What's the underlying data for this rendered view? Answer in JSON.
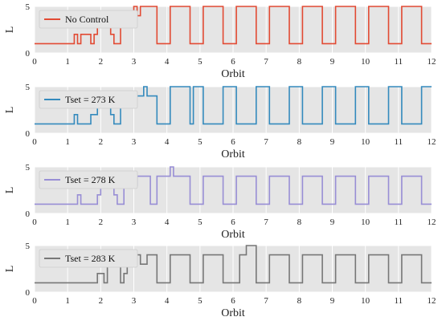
{
  "chart_data": [
    {
      "type": "line",
      "series": [
        {
          "name": "No Control",
          "color": "#e24a33",
          "x": [
            0,
            1.2,
            1.2,
            1.3,
            1.3,
            1.4,
            1.4,
            1.7,
            1.7,
            1.8,
            1.8,
            1.9,
            1.9,
            2.3,
            2.3,
            2.4,
            2.4,
            2.6,
            2.6,
            3.0,
            3.0,
            3.1,
            3.1,
            3.2,
            3.2,
            3.3,
            3.3,
            3.7,
            3.7,
            4.1,
            4.1,
            4.7,
            4.7,
            5.1,
            5.1,
            5.7,
            5.7,
            6.1,
            6.1,
            6.7,
            6.7,
            7.1,
            7.1,
            7.7,
            7.7,
            8.1,
            8.1,
            8.7,
            8.7,
            9.1,
            9.1,
            9.7,
            9.7,
            10.1,
            10.1,
            10.7,
            10.7,
            11.1,
            11.1,
            11.7,
            11.7,
            12
          ],
          "y": [
            1,
            1,
            2,
            2,
            1,
            1,
            2,
            2,
            1,
            1,
            2,
            2,
            3,
            3,
            2,
            2,
            1,
            1,
            4,
            4,
            5,
            5,
            4,
            4,
            5,
            5,
            5,
            5,
            1,
            1,
            5,
            5,
            1,
            1,
            5,
            5,
            1,
            1,
            5,
            5,
            1,
            1,
            5,
            5,
            1,
            1,
            5,
            5,
            1,
            1,
            5,
            5,
            1,
            1,
            5,
            5,
            1,
            1,
            5,
            5,
            1,
            1
          ]
        }
      ],
      "xlabel": "Orbit",
      "ylabel": "L",
      "xlim": [
        0,
        12
      ],
      "ylim": [
        0,
        5
      ],
      "xticks": [
        "0",
        "1",
        "2",
        "3",
        "4",
        "5",
        "6",
        "7",
        "8",
        "9",
        "10",
        "11",
        "12"
      ],
      "yticks": [
        "0",
        "5"
      ],
      "grid": true,
      "legend": "top-left"
    },
    {
      "type": "line",
      "series": [
        {
          "name": "Tset = 273 K",
          "color": "#348abd",
          "x": [
            0,
            1.2,
            1.2,
            1.3,
            1.3,
            1.7,
            1.7,
            1.9,
            1.9,
            2.3,
            2.3,
            2.4,
            2.4,
            2.6,
            2.6,
            2.9,
            2.9,
            3.0,
            3.0,
            3.3,
            3.3,
            3.4,
            3.4,
            3.7,
            3.7,
            4.1,
            4.1,
            4.7,
            4.7,
            4.8,
            4.8,
            5.1,
            5.1,
            5.7,
            5.7,
            6.1,
            6.1,
            6.7,
            6.7,
            7.1,
            7.1,
            7.7,
            7.7,
            8.1,
            8.1,
            8.7,
            8.7,
            9.1,
            9.1,
            9.7,
            9.7,
            10.1,
            10.1,
            10.7,
            10.7,
            11.1,
            11.1,
            11.7,
            11.7,
            12
          ],
          "y": [
            1,
            1,
            2,
            2,
            1,
            1,
            2,
            2,
            3,
            3,
            2,
            2,
            1,
            1,
            3,
            3,
            4,
            4,
            4,
            4,
            5,
            5,
            4,
            4,
            1,
            1,
            5,
            5,
            1,
            1,
            5,
            5,
            1,
            1,
            5,
            5,
            1,
            1,
            5,
            5,
            1,
            1,
            5,
            5,
            1,
            1,
            5,
            5,
            1,
            1,
            5,
            5,
            1,
            1,
            5,
            5,
            1,
            1,
            5,
            5
          ]
        }
      ],
      "xlabel": "Orbit",
      "ylabel": "L",
      "xlim": [
        0,
        12
      ],
      "ylim": [
        0,
        5
      ],
      "xticks": [
        "0",
        "1",
        "2",
        "3",
        "4",
        "5",
        "6",
        "7",
        "8",
        "9",
        "10",
        "11",
        "12"
      ],
      "yticks": [
        "0",
        "5"
      ],
      "grid": true,
      "legend": "top-left"
    },
    {
      "type": "line",
      "series": [
        {
          "name": "Tset = 278 K",
          "color": "#988ed5",
          "x": [
            0,
            1.3,
            1.3,
            1.4,
            1.4,
            1.9,
            1.9,
            2.0,
            2.0,
            2.4,
            2.4,
            2.5,
            2.5,
            2.7,
            2.7,
            3.1,
            3.1,
            3.5,
            3.5,
            3.7,
            3.7,
            4.1,
            4.1,
            4.2,
            4.2,
            4.3,
            4.3,
            4.7,
            4.7,
            5.1,
            5.1,
            5.7,
            5.7,
            6.1,
            6.1,
            6.7,
            6.7,
            7.1,
            7.1,
            7.7,
            7.7,
            8.1,
            8.1,
            8.7,
            8.7,
            9.1,
            9.1,
            9.7,
            9.7,
            10.1,
            10.1,
            10.7,
            10.7,
            11.1,
            11.1,
            11.7,
            11.7,
            12
          ],
          "y": [
            1,
            1,
            2,
            2,
            1,
            1,
            2,
            2,
            3,
            3,
            2,
            2,
            1,
            1,
            3,
            3,
            4,
            4,
            1,
            1,
            4,
            4,
            5,
            5,
            4,
            4,
            4,
            4,
            1,
            1,
            4,
            4,
            1,
            1,
            4,
            4,
            1,
            1,
            4,
            4,
            1,
            1,
            4,
            4,
            1,
            1,
            4,
            4,
            1,
            1,
            4,
            4,
            1,
            1,
            4,
            4,
            1,
            1
          ]
        }
      ],
      "xlabel": "Orbit",
      "ylabel": "L",
      "xlim": [
        0,
        12
      ],
      "ylim": [
        0,
        5
      ],
      "xticks": [
        "0",
        "1",
        "2",
        "3",
        "4",
        "5",
        "6",
        "7",
        "8",
        "9",
        "10",
        "11",
        "12"
      ],
      "yticks": [
        "0",
        "5"
      ],
      "grid": true,
      "legend": "top-left"
    },
    {
      "type": "line",
      "series": [
        {
          "name": "Tset = 283 K",
          "color": "#777777",
          "x": [
            0,
            1.9,
            1.9,
            2.1,
            2.1,
            2.2,
            2.2,
            2.6,
            2.6,
            2.7,
            2.7,
            2.8,
            2.8,
            3.0,
            3.0,
            3.2,
            3.2,
            3.4,
            3.4,
            3.7,
            3.7,
            4.1,
            4.1,
            4.7,
            4.7,
            5.1,
            5.1,
            5.7,
            5.7,
            6.2,
            6.2,
            6.4,
            6.4,
            6.7,
            6.7,
            7.1,
            7.1,
            7.7,
            7.7,
            8.1,
            8.1,
            8.7,
            8.7,
            9.1,
            9.1,
            9.7,
            9.7,
            10.1,
            10.1,
            10.7,
            10.7,
            11.1,
            11.1,
            11.7,
            11.7,
            12
          ],
          "y": [
            1,
            1,
            2,
            2,
            1,
            1,
            3,
            3,
            1,
            1,
            2,
            2,
            3,
            3,
            4,
            4,
            3,
            3,
            4,
            4,
            1,
            1,
            4,
            4,
            1,
            1,
            4,
            4,
            1,
            1,
            4,
            4,
            5,
            5,
            1,
            1,
            4,
            4,
            1,
            1,
            4,
            4,
            1,
            1,
            4,
            4,
            1,
            1,
            4,
            4,
            1,
            1,
            4,
            4,
            1,
            1
          ]
        }
      ],
      "xlabel": "Orbit",
      "ylabel": "L",
      "xlim": [
        0,
        12
      ],
      "ylim": [
        0,
        5
      ],
      "xticks": [
        "0",
        "1",
        "2",
        "3",
        "4",
        "5",
        "6",
        "7",
        "8",
        "9",
        "10",
        "11",
        "12"
      ],
      "yticks": [
        "0",
        "5"
      ],
      "grid": true,
      "legend": "top-left"
    }
  ]
}
